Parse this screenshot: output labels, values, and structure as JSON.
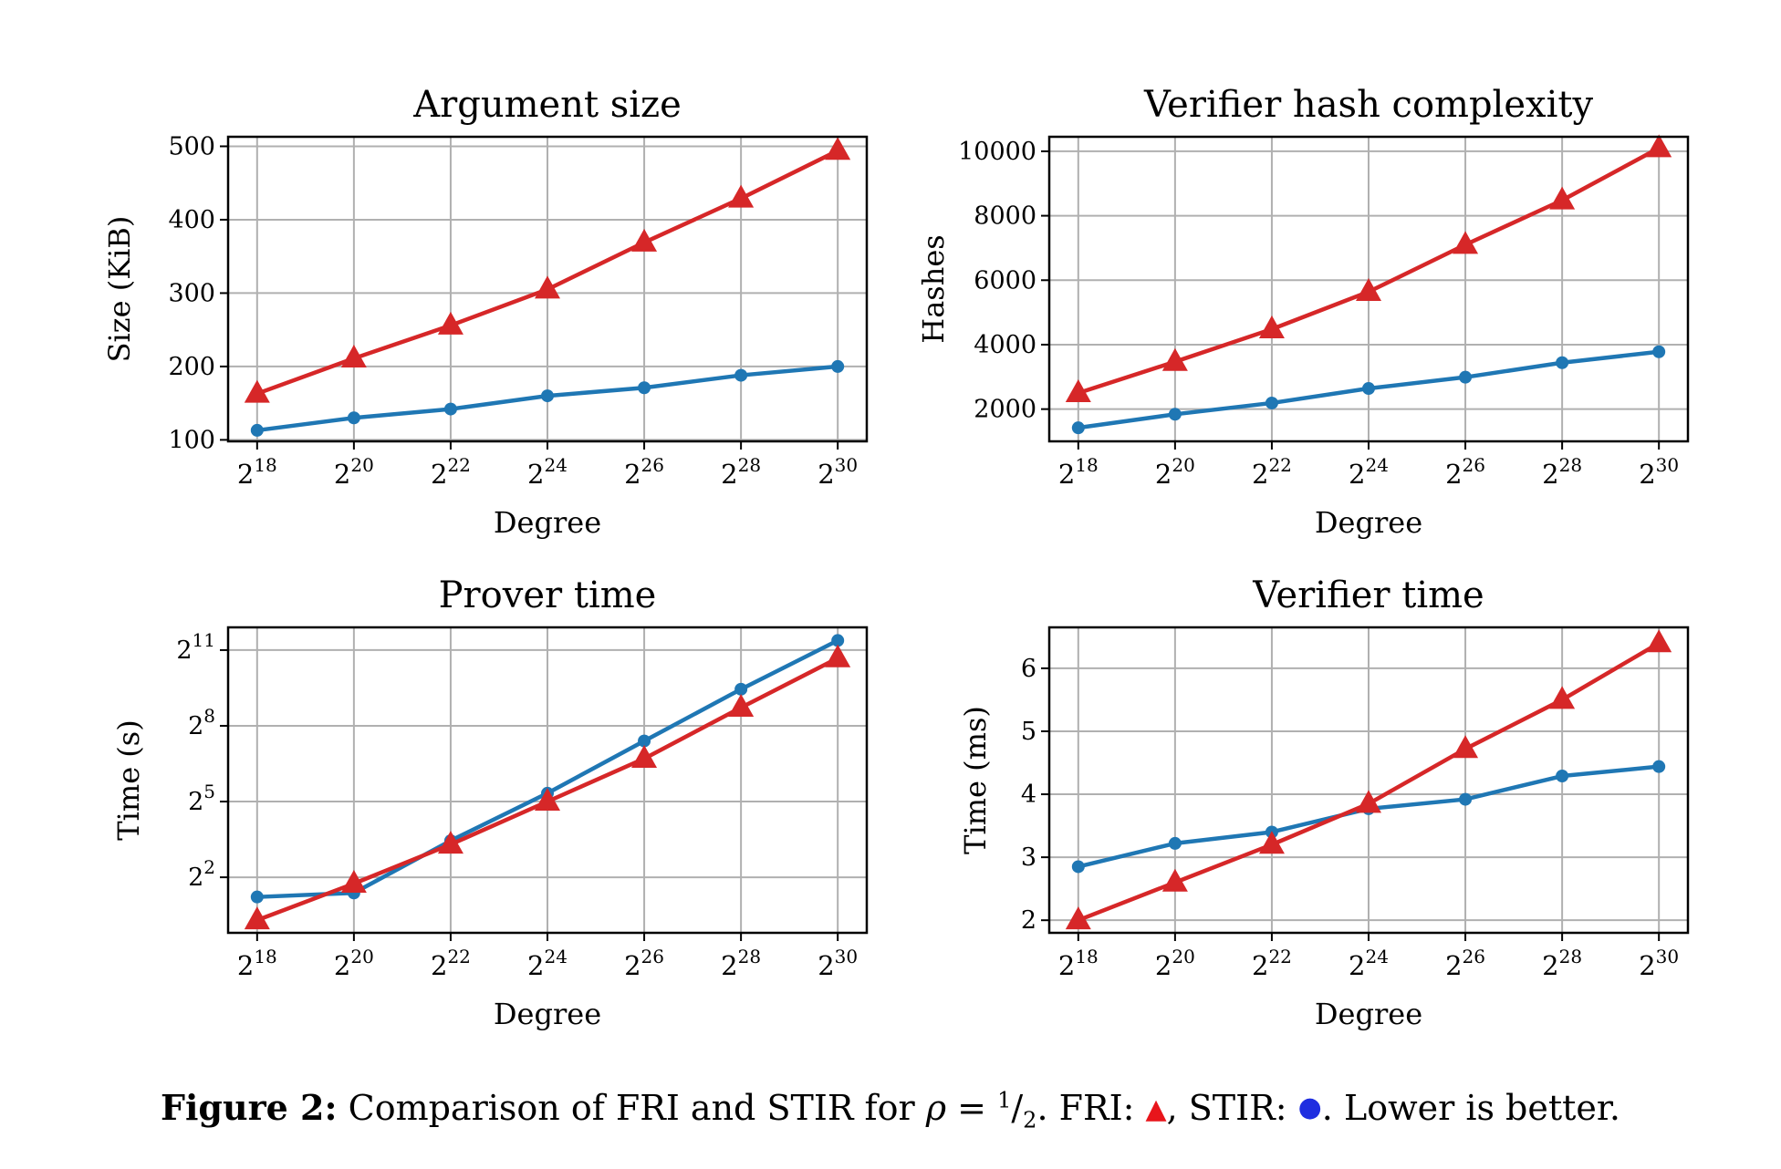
{
  "chart_data": [
    {
      "type": "line",
      "title": "Argument size",
      "xlabel": "Degree",
      "ylabel": "Size (KiB)",
      "x_exponents": [
        18,
        20,
        22,
        24,
        26,
        28,
        30
      ],
      "x_tick_base": "2",
      "ylim": [
        98,
        513
      ],
      "yticks": [
        100,
        200,
        300,
        400,
        500
      ],
      "ytick_labels": [
        "100",
        "200",
        "300",
        "400",
        "500"
      ],
      "grid": true,
      "series": [
        {
          "marker": "triangle",
          "color": "#d62728",
          "values": [
            163,
            211,
            256,
            305,
            369,
            429,
            494
          ]
        },
        {
          "marker": "circle",
          "color": "#1f77b4",
          "values": [
            113,
            130,
            142,
            160,
            171,
            188,
            200
          ]
        }
      ]
    },
    {
      "type": "line",
      "title": "Verifier hash complexity",
      "xlabel": "Degree",
      "ylabel": "Hashes",
      "x_exponents": [
        18,
        20,
        22,
        24,
        26,
        28,
        30
      ],
      "x_tick_base": "2",
      "ylim": [
        1000,
        10450
      ],
      "yticks": [
        2000,
        4000,
        6000,
        8000,
        10000
      ],
      "ytick_labels": [
        "2000",
        "4000",
        "6000",
        "8000",
        "10000"
      ],
      "grid": true,
      "series": [
        {
          "marker": "triangle",
          "color": "#d62728",
          "values": [
            2500,
            3470,
            4480,
            5640,
            7100,
            8480,
            10100
          ]
        },
        {
          "marker": "circle",
          "color": "#1f77b4",
          "values": [
            1420,
            1840,
            2190,
            2640,
            2990,
            3440,
            3780
          ]
        }
      ]
    },
    {
      "type": "line",
      "title": "Prover time",
      "xlabel": "Degree",
      "ylabel": "Time (s)",
      "x_exponents": [
        18,
        20,
        22,
        24,
        26,
        28,
        30
      ],
      "x_tick_base": "2",
      "y_scale": "log2",
      "ylim_log2": [
        -0.2,
        11.9
      ],
      "yticks_log2": [
        2,
        5,
        8,
        11
      ],
      "ytick_base": "2",
      "grid": true,
      "series": [
        {
          "marker": "triangle",
          "color": "#d62728",
          "values_log2": [
            0.3,
            1.75,
            3.3,
            5.0,
            6.7,
            8.72,
            10.68
          ]
        },
        {
          "marker": "circle",
          "color": "#1f77b4",
          "values_log2": [
            1.22,
            1.38,
            3.45,
            5.33,
            7.4,
            9.45,
            11.38
          ]
        }
      ]
    },
    {
      "type": "line",
      "title": "Verifier time",
      "xlabel": "Degree",
      "ylabel": "Time (ms)",
      "x_exponents": [
        18,
        20,
        22,
        24,
        26,
        28,
        30
      ],
      "x_tick_base": "2",
      "ylim": [
        1.8,
        6.65
      ],
      "yticks": [
        2,
        3,
        4,
        5,
        6
      ],
      "ytick_labels": [
        "2",
        "3",
        "4",
        "5",
        "6"
      ],
      "grid": true,
      "series": [
        {
          "marker": "triangle",
          "color": "#d62728",
          "values": [
            2.0,
            2.6,
            3.2,
            3.85,
            4.72,
            5.5,
            6.4
          ]
        },
        {
          "marker": "circle",
          "color": "#1f77b4",
          "values": [
            2.85,
            3.22,
            3.4,
            3.77,
            3.92,
            4.29,
            4.44
          ]
        }
      ]
    }
  ],
  "caption": {
    "label": "Figure 2:",
    "text_before": "Comparison of FRI and STIR for ",
    "rho": "ρ",
    "equals": " = ",
    "frac_num": "1",
    "frac_den": "2",
    "text_mid1": ". FRI: ",
    "fri_symbol": "▲",
    "text_mid2": ", STIR: ",
    "stir_symbol": "●",
    "text_end": ". Lower is better."
  }
}
